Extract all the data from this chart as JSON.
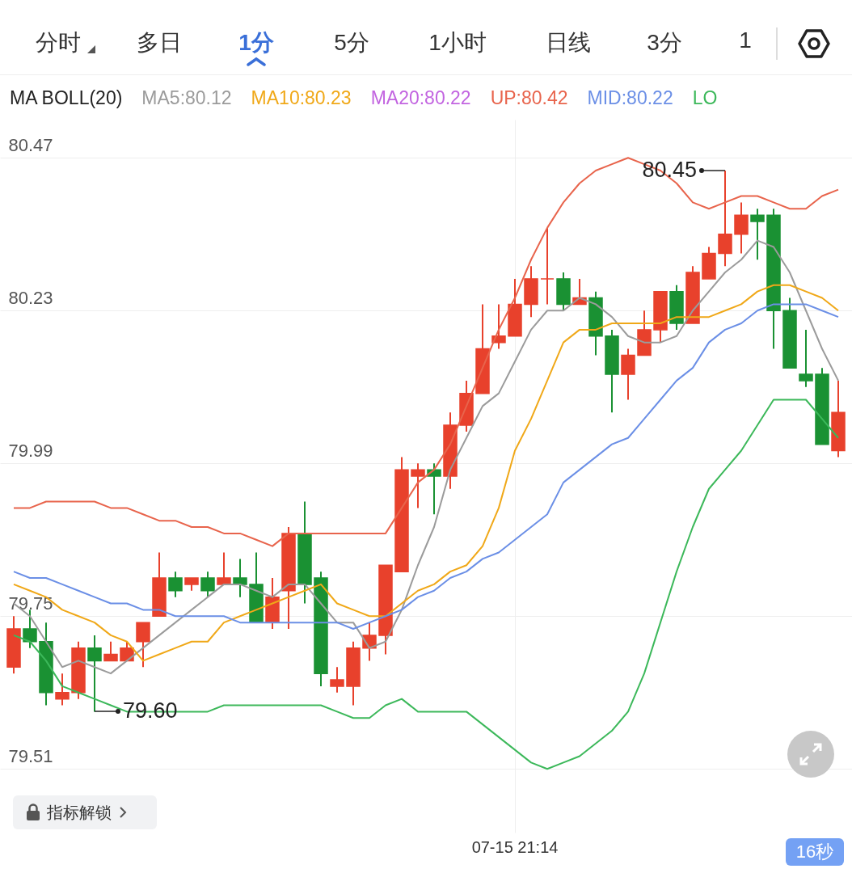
{
  "chart_data": {
    "type": "candlestick",
    "legend_title": "MA BOLL(20)",
    "legend": "top left",
    "grid": true,
    "ylim": [
      79.41,
      80.53
    ],
    "yticks": [
      80.47,
      80.23,
      79.99,
      79.75,
      79.51
    ],
    "categories": [
      null,
      null,
      null,
      null,
      null,
      null,
      null,
      null,
      null,
      null,
      null,
      null,
      null,
      null,
      null,
      null,
      null,
      null,
      null,
      null,
      null,
      null,
      null,
      null,
      null,
      null,
      null,
      null,
      null,
      null,
      null,
      "07-15 21:14",
      null,
      null,
      null,
      null,
      null,
      null,
      null,
      null,
      null,
      null,
      null,
      null,
      null,
      null,
      null,
      null,
      null,
      null,
      null,
      null
    ],
    "ohlc": [
      [
        79.67,
        79.75,
        79.66,
        79.73
      ],
      [
        79.73,
        79.76,
        79.7,
        79.71
      ],
      [
        79.71,
        79.74,
        79.61,
        79.63
      ],
      [
        79.62,
        79.66,
        79.61,
        79.63
      ],
      [
        79.63,
        79.71,
        79.62,
        79.7
      ],
      [
        79.7,
        79.72,
        79.6,
        79.68
      ],
      [
        79.68,
        79.71,
        79.68,
        79.69
      ],
      [
        79.68,
        79.71,
        79.68,
        79.7
      ],
      [
        79.71,
        79.74,
        79.67,
        79.74
      ],
      [
        79.75,
        79.85,
        79.75,
        79.81
      ],
      [
        79.81,
        79.82,
        79.78,
        79.79
      ],
      [
        79.8,
        79.81,
        79.79,
        79.81
      ],
      [
        79.81,
        79.82,
        79.78,
        79.79
      ],
      [
        79.8,
        79.85,
        79.8,
        79.81
      ],
      [
        79.81,
        79.84,
        79.78,
        79.8
      ],
      [
        79.8,
        79.85,
        79.74,
        79.74
      ],
      [
        79.74,
        79.81,
        79.73,
        79.78
      ],
      [
        79.79,
        79.89,
        79.73,
        79.88
      ],
      [
        79.88,
        79.93,
        79.77,
        79.8
      ],
      [
        79.81,
        79.82,
        79.64,
        79.66
      ],
      [
        79.64,
        79.67,
        79.63,
        79.65
      ],
      [
        79.64,
        79.71,
        79.61,
        79.7
      ],
      [
        79.7,
        79.74,
        79.68,
        79.72
      ],
      [
        79.72,
        79.83,
        79.69,
        79.83
      ],
      [
        79.82,
        80.0,
        79.82,
        79.98
      ],
      [
        79.97,
        79.99,
        79.92,
        79.98
      ],
      [
        79.98,
        79.99,
        79.91,
        79.97
      ],
      [
        79.97,
        80.07,
        79.95,
        80.05
      ],
      [
        80.05,
        80.12,
        80.04,
        80.1
      ],
      [
        80.1,
        80.24,
        80.1,
        80.17
      ],
      [
        80.18,
        80.24,
        80.17,
        80.19
      ],
      [
        80.19,
        80.28,
        80.19,
        80.24
      ],
      [
        80.24,
        80.3,
        80.22,
        80.28
      ],
      [
        80.28,
        80.36,
        80.24,
        80.28
      ],
      [
        80.28,
        80.29,
        80.23,
        80.24
      ],
      [
        80.24,
        80.28,
        80.24,
        80.25
      ],
      [
        80.25,
        80.26,
        80.16,
        80.19
      ],
      [
        80.19,
        80.2,
        80.07,
        80.13
      ],
      [
        80.13,
        80.17,
        80.09,
        80.16
      ],
      [
        80.16,
        80.23,
        80.16,
        80.2
      ],
      [
        80.2,
        80.26,
        80.18,
        80.26
      ],
      [
        80.26,
        80.27,
        80.2,
        80.21
      ],
      [
        80.21,
        80.3,
        80.21,
        80.29
      ],
      [
        80.28,
        80.33,
        80.28,
        80.32
      ],
      [
        80.32,
        80.45,
        80.3,
        80.35
      ],
      [
        80.35,
        80.4,
        80.32,
        80.38
      ],
      [
        80.38,
        80.39,
        80.31,
        80.37
      ],
      [
        80.38,
        80.39,
        80.17,
        80.23
      ],
      [
        80.23,
        80.25,
        80.14,
        80.14
      ],
      [
        80.13,
        80.2,
        80.11,
        80.12
      ],
      [
        80.13,
        80.14,
        80.02,
        80.02
      ],
      [
        80.01,
        80.12,
        80.0,
        80.07
      ]
    ],
    "colors": [
      "#e8412c",
      "#1a9133",
      "#1a9133",
      "#e8412c",
      "#e8412c",
      "#1a9133",
      "#e8412c",
      "#e8412c",
      "#e8412c",
      "#e8412c",
      "#1a9133",
      "#e8412c",
      "#1a9133",
      "#e8412c",
      "#1a9133",
      "#1a9133",
      "#e8412c",
      "#e8412c",
      "#1a9133",
      "#1a9133",
      "#e8412c",
      "#e8412c",
      "#e8412c",
      "#e8412c",
      "#e8412c",
      "#e8412c",
      "#1a9133",
      "#e8412c",
      "#e8412c",
      "#e8412c",
      "#e8412c",
      "#e8412c",
      "#e8412c",
      "#e8412c",
      "#1a9133",
      "#e8412c",
      "#1a9133",
      "#1a9133",
      "#e8412c",
      "#e8412c",
      "#e8412c",
      "#1a9133",
      "#e8412c",
      "#e8412c",
      "#e8412c",
      "#e8412c",
      "#1a9133",
      "#1a9133",
      "#1a9133",
      "#1a9133",
      "#1a9133",
      "#e8412c"
    ],
    "series": [
      {
        "type": "line",
        "name": "MA5:80.12",
        "color": "#9b9b9b",
        "values": [
          79.77,
          79.75,
          79.71,
          79.67,
          79.68,
          79.67,
          79.66,
          79.68,
          79.7,
          79.72,
          79.74,
          79.76,
          79.78,
          79.8,
          79.8,
          79.79,
          79.78,
          79.8,
          79.8,
          79.77,
          79.74,
          79.74,
          79.7,
          79.71,
          79.76,
          79.83,
          79.89,
          79.98,
          80.03,
          80.08,
          80.1,
          80.15,
          80.2,
          80.23,
          80.23,
          80.25,
          80.24,
          80.22,
          80.19,
          80.18,
          80.18,
          80.19,
          80.23,
          80.26,
          80.29,
          80.31,
          80.34,
          80.33,
          80.29,
          80.23,
          80.17,
          80.12
        ]
      },
      {
        "type": "line",
        "name": "MA10:80.23",
        "color": "#f0a818",
        "values": [
          79.8,
          79.79,
          79.78,
          79.76,
          79.75,
          79.74,
          79.72,
          79.71,
          79.68,
          79.69,
          79.7,
          79.71,
          79.71,
          79.74,
          79.75,
          79.76,
          79.77,
          79.78,
          79.79,
          79.8,
          79.77,
          79.76,
          79.75,
          79.75,
          79.77,
          79.79,
          79.8,
          79.82,
          79.83,
          79.86,
          79.92,
          80.01,
          80.06,
          80.12,
          80.18,
          80.2,
          80.2,
          80.21,
          80.21,
          80.21,
          80.21,
          80.22,
          80.22,
          80.22,
          80.23,
          80.24,
          80.26,
          80.27,
          80.27,
          80.26,
          80.25,
          80.23
        ]
      },
      {
        "type": "line",
        "name": "MA20:80.22",
        "color": "#c264e0",
        "values": [
          null,
          null,
          null,
          null,
          null,
          null,
          null,
          null,
          null,
          null,
          null,
          null,
          null,
          null,
          null,
          null,
          null,
          null,
          null,
          null,
          null,
          null,
          null,
          null,
          null,
          null,
          null,
          null,
          null,
          null,
          null,
          null,
          null,
          null,
          null,
          null,
          null,
          null,
          null,
          null,
          null,
          null,
          null,
          null,
          null,
          null,
          null,
          null,
          null,
          null,
          null,
          null
        ]
      },
      {
        "type": "line",
        "name": "UP:80.42",
        "color": "#e8644c",
        "values": [
          79.92,
          79.92,
          79.93,
          79.93,
          79.93,
          79.93,
          79.92,
          79.92,
          79.91,
          79.9,
          79.9,
          79.89,
          79.89,
          79.88,
          79.88,
          79.87,
          79.86,
          79.88,
          79.88,
          79.88,
          79.88,
          79.88,
          79.88,
          79.88,
          79.92,
          79.96,
          79.98,
          80.02,
          80.08,
          80.14,
          80.2,
          80.25,
          80.31,
          80.36,
          80.4,
          80.43,
          80.45,
          80.46,
          80.47,
          80.46,
          80.45,
          80.43,
          80.4,
          80.39,
          80.4,
          80.41,
          80.41,
          80.4,
          80.39,
          80.39,
          80.41,
          80.42
        ]
      },
      {
        "type": "line",
        "name": "MID:80.22",
        "color": "#6b8fe6",
        "values": [
          79.82,
          79.81,
          79.81,
          79.8,
          79.79,
          79.78,
          79.77,
          79.77,
          79.76,
          79.76,
          79.75,
          79.75,
          79.75,
          79.75,
          79.74,
          79.74,
          79.74,
          79.74,
          79.74,
          79.74,
          79.74,
          79.73,
          79.74,
          79.75,
          79.76,
          79.78,
          79.79,
          79.81,
          79.82,
          79.84,
          79.85,
          79.87,
          79.89,
          79.91,
          79.96,
          79.98,
          80.0,
          80.02,
          80.03,
          80.06,
          80.09,
          80.12,
          80.14,
          80.18,
          80.2,
          80.21,
          80.23,
          80.24,
          80.24,
          80.24,
          80.23,
          80.22
        ]
      },
      {
        "type": "line",
        "name": "LO",
        "color": "#3cb85a",
        "values": [
          79.72,
          79.71,
          79.68,
          79.64,
          79.63,
          79.62,
          79.61,
          79.6,
          79.6,
          79.6,
          79.6,
          79.6,
          79.6,
          79.61,
          79.61,
          79.61,
          79.61,
          79.61,
          79.61,
          79.61,
          79.6,
          79.59,
          79.59,
          79.61,
          79.62,
          79.6,
          79.6,
          79.6,
          79.6,
          79.58,
          79.56,
          79.54,
          79.52,
          79.51,
          79.52,
          79.53,
          79.55,
          79.57,
          79.6,
          79.66,
          79.74,
          79.82,
          79.89,
          79.95,
          79.98,
          80.01,
          80.05,
          80.09,
          80.09,
          80.09,
          80.06,
          80.03
        ]
      }
    ],
    "annotations": [
      "分时",
      "多日",
      "1分",
      "5分",
      "1小时",
      "日线",
      "3分",
      "1",
      "80.45",
      "79.60",
      "指标解锁",
      "16秒"
    ]
  }
}
